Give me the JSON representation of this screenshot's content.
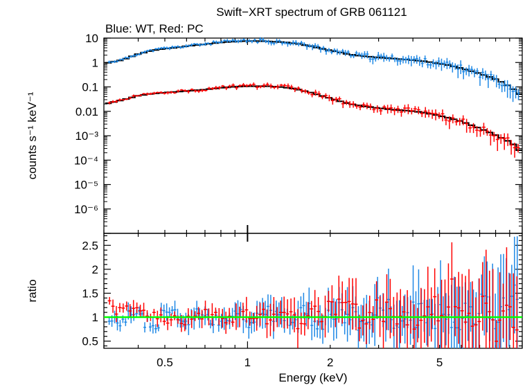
{
  "title": "Swift−XRT spectrum of GRB 061121",
  "subtitle": "Blue: WT, Red: PC",
  "colors": {
    "wt": "#1e88e5",
    "pc": "#ff0000",
    "model": "#000000",
    "unity": "#00ff00",
    "axis": "#000000"
  },
  "chart_data": [
    {
      "type": "scatter",
      "panel": "spectrum",
      "ylabel": "counts s⁻¹ keV⁻¹",
      "xscale": "log",
      "yscale": "log",
      "xlim": [
        0.3,
        10
      ],
      "ylim": [
        1e-07,
        10
      ],
      "y_tick_labels": [
        "10",
        "1",
        "0.1",
        "0.01",
        "10⁻³",
        "10⁻⁴",
        "10⁻⁵",
        "10⁻⁶"
      ],
      "series": [
        {
          "name": "WT",
          "color": "#1e88e5",
          "x": [
            0.31,
            0.35,
            0.4,
            0.45,
            0.5,
            0.55,
            0.6,
            0.7,
            0.8,
            0.9,
            1.0,
            1.1,
            1.2,
            1.35,
            1.5,
            1.7,
            1.9,
            2.1,
            2.3,
            2.6,
            3.0,
            3.4,
            3.8,
            4.3,
            4.8,
            5.4,
            6.0,
            6.7,
            7.5,
            8.3,
            9.2,
            9.8
          ],
          "y": [
            1.0,
            1.3,
            2.3,
            3.2,
            3.8,
            4.2,
            4.8,
            5.8,
            6.8,
            7.5,
            7.8,
            7.8,
            7.5,
            7.0,
            6.2,
            4.8,
            3.6,
            2.9,
            2.3,
            1.9,
            1.65,
            1.5,
            1.35,
            1.2,
            1.0,
            0.8,
            0.6,
            0.42,
            0.28,
            0.18,
            0.09,
            0.05
          ]
        },
        {
          "name": "PC",
          "color": "#ff0000",
          "x": [
            0.31,
            0.35,
            0.4,
            0.45,
            0.5,
            0.55,
            0.6,
            0.7,
            0.8,
            0.9,
            1.0,
            1.1,
            1.2,
            1.35,
            1.5,
            1.7,
            1.9,
            2.1,
            2.3,
            2.6,
            3.0,
            3.4,
            3.8,
            4.3,
            4.8,
            5.4,
            6.0,
            6.7,
            7.5,
            8.3,
            9.2,
            9.8
          ],
          "y": [
            0.022,
            0.03,
            0.045,
            0.055,
            0.06,
            0.065,
            0.07,
            0.08,
            0.095,
            0.105,
            0.11,
            0.11,
            0.11,
            0.1,
            0.085,
            0.06,
            0.042,
            0.03,
            0.022,
            0.017,
            0.014,
            0.012,
            0.011,
            0.0095,
            0.0075,
            0.0055,
            0.004,
            0.0025,
            0.0015,
            0.0009,
            0.0005,
            0.00025
          ]
        }
      ],
      "model_label": "model"
    },
    {
      "type": "scatter",
      "panel": "ratio",
      "ylabel": "ratio",
      "xlabel": "Energy (keV)",
      "xscale": "log",
      "xlim": [
        0.3,
        10
      ],
      "ylim": [
        0.35,
        2.75
      ],
      "x_tick_labels": [
        "0.5",
        "1",
        "2",
        "5"
      ],
      "y_tick_labels": [
        "0.5",
        "1",
        "1.5",
        "2",
        "2.5"
      ],
      "reference_line": 1,
      "series": [
        {
          "name": "WT",
          "color": "#1e88e5",
          "x": [
            0.31,
            0.36,
            0.42,
            0.48,
            0.55,
            0.62,
            0.7,
            0.8,
            0.9,
            1.0,
            1.15,
            1.3,
            1.5,
            1.7,
            1.9,
            2.2,
            2.5,
            2.9,
            3.3,
            3.8,
            4.3,
            4.9,
            5.5,
            6.1,
            6.8,
            7.5,
            8.3,
            9.0,
            9.7
          ],
          "y": [
            0.88,
            1.12,
            0.82,
            1.15,
            0.9,
            1.1,
            0.95,
            1.05,
            1.12,
            0.9,
            1.08,
            0.95,
            1.18,
            0.92,
            1.1,
            1.02,
            0.88,
            1.2,
            0.92,
            1.08,
            0.95,
            1.3,
            0.85,
            1.1,
            1.6,
            0.8,
            1.4,
            1.9,
            2.0
          ]
        },
        {
          "name": "PC",
          "color": "#ff0000",
          "x": [
            0.31,
            0.36,
            0.42,
            0.48,
            0.55,
            0.62,
            0.7,
            0.8,
            0.9,
            1.0,
            1.15,
            1.3,
            1.5,
            1.7,
            1.9,
            2.2,
            2.5,
            2.9,
            3.3,
            3.8,
            4.3,
            4.9,
            5.5,
            6.1,
            6.8,
            7.5,
            8.3,
            9.0,
            9.7
          ],
          "y": [
            1.25,
            1.22,
            1.02,
            0.92,
            0.9,
            0.95,
            1.1,
            0.92,
            1.05,
            1.12,
            0.95,
            1.1,
            0.9,
            1.08,
            1.2,
            1.15,
            0.9,
            1.15,
            1.05,
            0.95,
            1.35,
            1.1,
            1.55,
            0.75,
            1.2,
            0.7,
            1.05,
            0.85,
            0.8
          ]
        }
      ]
    }
  ]
}
